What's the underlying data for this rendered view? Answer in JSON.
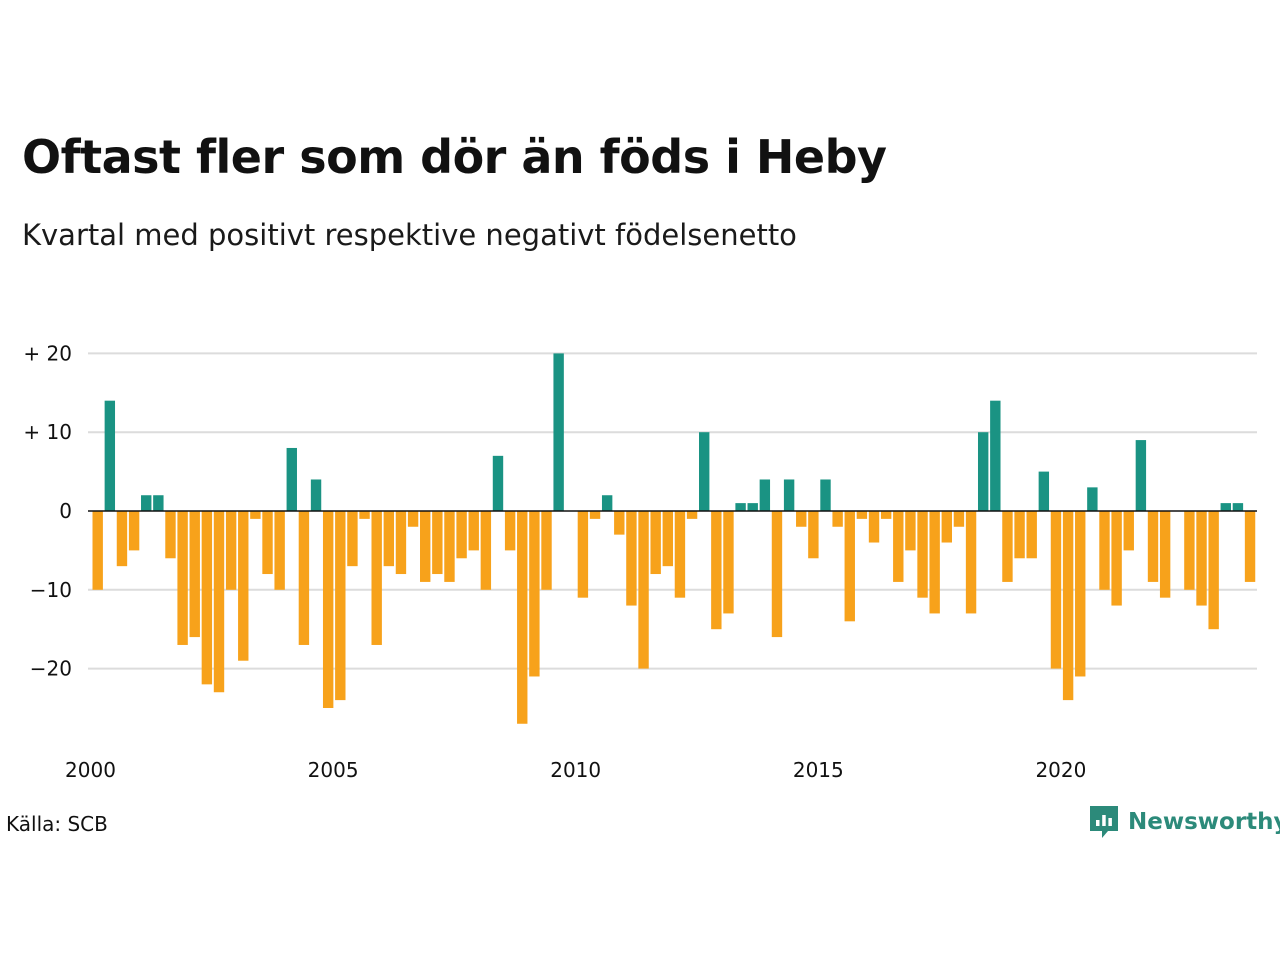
{
  "header": {
    "title": "Oftast fler som dör än föds i Heby",
    "subtitle": "Kvartal med positivt respektive negativt födelsenetto"
  },
  "footer": {
    "source": "Källa: SCB",
    "brand": "Newsworthy",
    "brand_icon": "newsworthy-logo-icon"
  },
  "chart_data": {
    "type": "bar",
    "start_year": 2000,
    "x_tick_labels": [
      "2000",
      "2005",
      "2010",
      "2015",
      "2020"
    ],
    "y_tick_values": [
      20,
      10,
      0,
      -10,
      -20
    ],
    "y_tick_labels": [
      "+ 20",
      "+ 10",
      "0",
      "−10",
      "−20"
    ],
    "ylim": [
      -28,
      22
    ],
    "grid": true,
    "positive_color": "#1a9383",
    "negative_color": "#f7a21b",
    "values": [
      -10,
      14,
      -7,
      -5,
      2,
      2,
      -6,
      -17,
      -16,
      -22,
      -23,
      -10,
      -19,
      -1,
      -8,
      -10,
      8,
      -17,
      4,
      -25,
      -24,
      -7,
      -1,
      -17,
      -7,
      -8,
      -2,
      -9,
      -8,
      -9,
      -6,
      -5,
      -10,
      7,
      -5,
      -27,
      -21,
      -10,
      20,
      0,
      -11,
      -1,
      2,
      -3,
      -12,
      -20,
      -8,
      -7,
      -11,
      -1,
      10,
      -15,
      -13,
      1,
      1,
      4,
      -16,
      4,
      -2,
      -6,
      4,
      -2,
      -14,
      -1,
      -4,
      -1,
      -9,
      -5,
      -11,
      -13,
      -4,
      -2,
      -13,
      10,
      14,
      -9,
      -6,
      -6,
      5,
      -20,
      -24,
      -21,
      3,
      -10,
      -12,
      -5,
      9,
      -9,
      -11,
      0,
      -10,
      -12,
      -15,
      1,
      1,
      -9
    ]
  }
}
